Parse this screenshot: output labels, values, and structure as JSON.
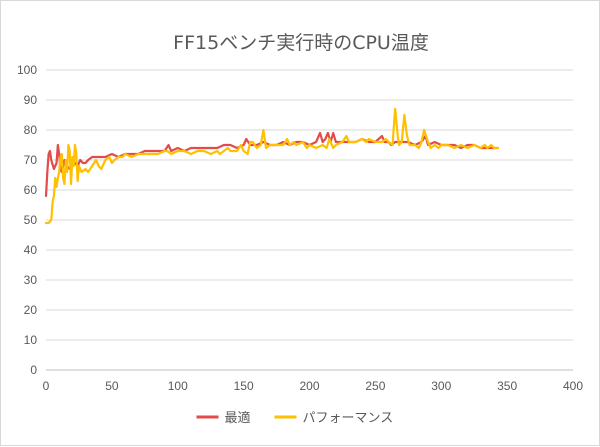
{
  "chart_data": {
    "type": "line",
    "title": "FF15ベンチ実行時のCPU温度",
    "xlabel": "",
    "ylabel": "",
    "xlim": [
      0,
      400
    ],
    "ylim": [
      0,
      100
    ],
    "x_ticks": [
      0,
      50,
      100,
      150,
      200,
      250,
      300,
      350,
      400
    ],
    "y_ticks": [
      0,
      10,
      20,
      30,
      40,
      50,
      60,
      70,
      80,
      90,
      100
    ],
    "grid": true,
    "legend_position": "bottom",
    "series": [
      {
        "name": "最適",
        "color": "#e24b4b",
        "points": [
          [
            0,
            58
          ],
          [
            1,
            66
          ],
          [
            2,
            72
          ],
          [
            3,
            73
          ],
          [
            4,
            70
          ],
          [
            6,
            67
          ],
          [
            8,
            69
          ],
          [
            9,
            75
          ],
          [
            10,
            72
          ],
          [
            11,
            67
          ],
          [
            12,
            66
          ],
          [
            14,
            70
          ],
          [
            16,
            68
          ],
          [
            18,
            67
          ],
          [
            20,
            68
          ],
          [
            22,
            69
          ],
          [
            24,
            68
          ],
          [
            26,
            70
          ],
          [
            28,
            69
          ],
          [
            30,
            69
          ],
          [
            32,
            70
          ],
          [
            35,
            71
          ],
          [
            40,
            71
          ],
          [
            45,
            71
          ],
          [
            50,
            72
          ],
          [
            55,
            71
          ],
          [
            60,
            72
          ],
          [
            65,
            72
          ],
          [
            70,
            72
          ],
          [
            75,
            73
          ],
          [
            80,
            73
          ],
          [
            85,
            73
          ],
          [
            90,
            73
          ],
          [
            93,
            75
          ],
          [
            95,
            73
          ],
          [
            100,
            74
          ],
          [
            105,
            73
          ],
          [
            110,
            74
          ],
          [
            115,
            74
          ],
          [
            120,
            74
          ],
          [
            125,
            74
          ],
          [
            130,
            74
          ],
          [
            135,
            75
          ],
          [
            140,
            75
          ],
          [
            145,
            74
          ],
          [
            150,
            75
          ],
          [
            152,
            77
          ],
          [
            155,
            75
          ],
          [
            160,
            75
          ],
          [
            165,
            76
          ],
          [
            170,
            75
          ],
          [
            175,
            75
          ],
          [
            180,
            76
          ],
          [
            185,
            75
          ],
          [
            190,
            76
          ],
          [
            195,
            76
          ],
          [
            200,
            75
          ],
          [
            205,
            76
          ],
          [
            208,
            79
          ],
          [
            210,
            76
          ],
          [
            212,
            77
          ],
          [
            214,
            79
          ],
          [
            216,
            76
          ],
          [
            218,
            79
          ],
          [
            220,
            76
          ],
          [
            225,
            76
          ],
          [
            230,
            76
          ],
          [
            235,
            76
          ],
          [
            240,
            77
          ],
          [
            245,
            76
          ],
          [
            250,
            76
          ],
          [
            255,
            78
          ],
          [
            257,
            76
          ],
          [
            260,
            76
          ],
          [
            262,
            75
          ],
          [
            265,
            76
          ],
          [
            270,
            76
          ],
          [
            275,
            76
          ],
          [
            280,
            75
          ],
          [
            285,
            76
          ],
          [
            288,
            78
          ],
          [
            290,
            75
          ],
          [
            295,
            76
          ],
          [
            300,
            75
          ],
          [
            305,
            75
          ],
          [
            310,
            75
          ],
          [
            315,
            74
          ],
          [
            320,
            75
          ],
          [
            325,
            75
          ],
          [
            330,
            74
          ],
          [
            335,
            74
          ],
          [
            340,
            74
          ],
          [
            343,
            74
          ]
        ]
      },
      {
        "name": "パフォーマンス",
        "color": "#ffc000",
        "points": [
          [
            0,
            49
          ],
          [
            2,
            49
          ],
          [
            4,
            50
          ],
          [
            5,
            56
          ],
          [
            6,
            58
          ],
          [
            7,
            64
          ],
          [
            8,
            61
          ],
          [
            9,
            64
          ],
          [
            10,
            66
          ],
          [
            11,
            71
          ],
          [
            12,
            72
          ],
          [
            13,
            64
          ],
          [
            14,
            62
          ],
          [
            15,
            70
          ],
          [
            16,
            66
          ],
          [
            17,
            75
          ],
          [
            18,
            73
          ],
          [
            19,
            62
          ],
          [
            20,
            71
          ],
          [
            21,
            68
          ],
          [
            22,
            75
          ],
          [
            23,
            72
          ],
          [
            24,
            63
          ],
          [
            25,
            68
          ],
          [
            27,
            66
          ],
          [
            30,
            67
          ],
          [
            32,
            66
          ],
          [
            35,
            68
          ],
          [
            38,
            70
          ],
          [
            40,
            68
          ],
          [
            42,
            67
          ],
          [
            45,
            70
          ],
          [
            48,
            71
          ],
          [
            50,
            69
          ],
          [
            52,
            70
          ],
          [
            55,
            71
          ],
          [
            58,
            71
          ],
          [
            60,
            72
          ],
          [
            65,
            71
          ],
          [
            70,
            72
          ],
          [
            75,
            72
          ],
          [
            80,
            72
          ],
          [
            85,
            72
          ],
          [
            90,
            73
          ],
          [
            92,
            73
          ],
          [
            95,
            72
          ],
          [
            100,
            73
          ],
          [
            105,
            73
          ],
          [
            110,
            72
          ],
          [
            115,
            73
          ],
          [
            120,
            73
          ],
          [
            125,
            72
          ],
          [
            130,
            73
          ],
          [
            132,
            72
          ],
          [
            135,
            73
          ],
          [
            138,
            74
          ],
          [
            140,
            73
          ],
          [
            145,
            73
          ],
          [
            148,
            75
          ],
          [
            150,
            73
          ],
          [
            153,
            72
          ],
          [
            155,
            76
          ],
          [
            157,
            76
          ],
          [
            160,
            74
          ],
          [
            163,
            75
          ],
          [
            165,
            80
          ],
          [
            167,
            74
          ],
          [
            170,
            75
          ],
          [
            175,
            75
          ],
          [
            180,
            75
          ],
          [
            183,
            77
          ],
          [
            185,
            75
          ],
          [
            188,
            76
          ],
          [
            190,
            75
          ],
          [
            195,
            76
          ],
          [
            198,
            74
          ],
          [
            200,
            75
          ],
          [
            205,
            74
          ],
          [
            210,
            75
          ],
          [
            213,
            74
          ],
          [
            215,
            77
          ],
          [
            218,
            74
          ],
          [
            220,
            75
          ],
          [
            225,
            76
          ],
          [
            228,
            78
          ],
          [
            230,
            76
          ],
          [
            235,
            76
          ],
          [
            240,
            77
          ],
          [
            243,
            76
          ],
          [
            245,
            77
          ],
          [
            250,
            76
          ],
          [
            255,
            76
          ],
          [
            258,
            77
          ],
          [
            260,
            76
          ],
          [
            263,
            75
          ],
          [
            265,
            87
          ],
          [
            267,
            78
          ],
          [
            268,
            75
          ],
          [
            270,
            76
          ],
          [
            272,
            85
          ],
          [
            274,
            78
          ],
          [
            276,
            75
          ],
          [
            280,
            75
          ],
          [
            283,
            74
          ],
          [
            285,
            76
          ],
          [
            287,
            80
          ],
          [
            290,
            76
          ],
          [
            292,
            74
          ],
          [
            295,
            75
          ],
          [
            298,
            74
          ],
          [
            300,
            75
          ],
          [
            305,
            75
          ],
          [
            310,
            74
          ],
          [
            315,
            75
          ],
          [
            320,
            74
          ],
          [
            325,
            75
          ],
          [
            330,
            74
          ],
          [
            333,
            75
          ],
          [
            335,
            74
          ],
          [
            338,
            75
          ],
          [
            340,
            74
          ],
          [
            343,
            74
          ]
        ]
      }
    ]
  }
}
